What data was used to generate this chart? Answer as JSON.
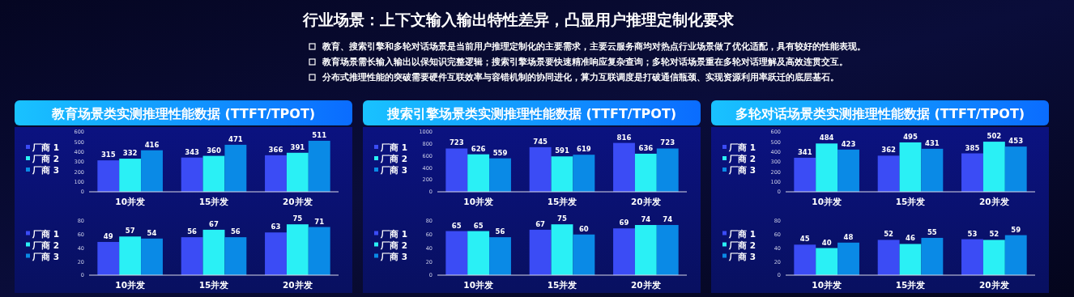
{
  "chart_data": [
    {
      "type": "other",
      "title": "行业场景：上下文输入输出特性差异，凸显用户推理定制化要求",
      "annotations": [
        "教育、搜索引擎和多轮对话场景是当前用户推理定制化的主要需求，主要云服务商均对热点行业场景做了优化适配，具有较好的性能表现。",
        "教育场景需长输入输出以保知识完整逻辑；搜索引擎场景要快速精准响应复杂查询；多轮对话场景重在多轮对话理解及高效连贯交互。",
        "分布式推理性能的突破需要硬件互联效率与容错机制的协同进化，算力互联调度是打破通信瓶颈、实现资源利用率跃迁的底层基石。"
      ]
    },
    {
      "type": "bar",
      "title": "教育场景类实测推理性能数据 (TTFT/TPOT)",
      "categories": [
        "10并发",
        "15并发",
        "20并发"
      ],
      "series": [
        {
          "name": "厂商 1",
          "color": "#3b4cf5",
          "values": [
            315,
            343,
            366
          ]
        },
        {
          "name": "厂商 2",
          "color": "#2af0f5",
          "values": [
            332,
            360,
            391
          ]
        },
        {
          "name": "厂商 3",
          "color": "#0a8ae6",
          "values": [
            416,
            471,
            511
          ]
        }
      ],
      "ylim": [
        0,
        600
      ],
      "yticks": [
        0,
        100,
        200,
        300,
        400,
        500,
        600
      ],
      "data_labels": true,
      "legend": "left"
    },
    {
      "type": "bar",
      "categories": [
        "10并发",
        "15并发",
        "20并发"
      ],
      "series": [
        {
          "name": "厂商 1",
          "color": "#3b4cf5",
          "values": [
            49,
            56,
            63
          ]
        },
        {
          "name": "厂商 2",
          "color": "#2af0f5",
          "values": [
            57,
            67,
            75
          ]
        },
        {
          "name": "厂商 3",
          "color": "#0a8ae6",
          "values": [
            54,
            56,
            71
          ]
        }
      ],
      "ylim": [
        0,
        80
      ],
      "yticks": [
        0,
        20,
        40,
        60,
        80
      ],
      "data_labels": true,
      "legend": "left"
    },
    {
      "type": "bar",
      "title": "搜索引擎场景类实测推理性能数据 (TTFT/TPOT)",
      "categories": [
        "10并发",
        "15并发",
        "20并发"
      ],
      "series": [
        {
          "name": "厂商 1",
          "color": "#3b4cf5",
          "values": [
            723,
            745,
            816
          ]
        },
        {
          "name": "厂商 2",
          "color": "#2af0f5",
          "values": [
            626,
            591,
            636
          ]
        },
        {
          "name": "厂商 3",
          "color": "#0a8ae6",
          "values": [
            559,
            619,
            723
          ]
        }
      ],
      "ylim": [
        0,
        1000
      ],
      "yticks": [
        0,
        200,
        400,
        600,
        800,
        1000
      ],
      "data_labels": true,
      "legend": "left"
    },
    {
      "type": "bar",
      "categories": [
        "10并发",
        "15并发",
        "20并发"
      ],
      "series": [
        {
          "name": "厂商 1",
          "color": "#3b4cf5",
          "values": [
            65,
            67,
            69
          ]
        },
        {
          "name": "厂商 2",
          "color": "#2af0f5",
          "values": [
            65,
            75,
            74
          ]
        },
        {
          "name": "厂商 3",
          "color": "#0a8ae6",
          "values": [
            56,
            60,
            74
          ]
        }
      ],
      "ylim": [
        0,
        80
      ],
      "yticks": [
        0,
        20,
        40,
        60,
        80
      ],
      "data_labels": true,
      "legend": "left"
    },
    {
      "type": "bar",
      "title": "多轮对话场景类实测推理性能数据 (TTFT/TPOT)",
      "categories": [
        "10并发",
        "15并发",
        "20并发"
      ],
      "series": [
        {
          "name": "厂商 1",
          "color": "#3b4cf5",
          "values": [
            341,
            362,
            385
          ]
        },
        {
          "name": "厂商 2",
          "color": "#2af0f5",
          "values": [
            484,
            495,
            502
          ]
        },
        {
          "name": "厂商 3",
          "color": "#0a8ae6",
          "values": [
            423,
            431,
            453
          ]
        }
      ],
      "ylim": [
        0,
        600
      ],
      "yticks": [
        0,
        100,
        200,
        300,
        400,
        500,
        600
      ],
      "data_labels": true,
      "legend": "left"
    },
    {
      "type": "bar",
      "categories": [
        "10并发",
        "15并发",
        "20并发"
      ],
      "series": [
        {
          "name": "厂商 1",
          "color": "#3b4cf5",
          "values": [
            45,
            52,
            53
          ]
        },
        {
          "name": "厂商 2",
          "color": "#2af0f5",
          "values": [
            40,
            46,
            52
          ]
        },
        {
          "name": "厂商 3",
          "color": "#0a8ae6",
          "values": [
            48,
            55,
            59
          ]
        }
      ],
      "ylim": [
        0,
        80
      ],
      "yticks": [
        0,
        20,
        40,
        60,
        80
      ],
      "data_labels": true,
      "legend": "left"
    }
  ]
}
